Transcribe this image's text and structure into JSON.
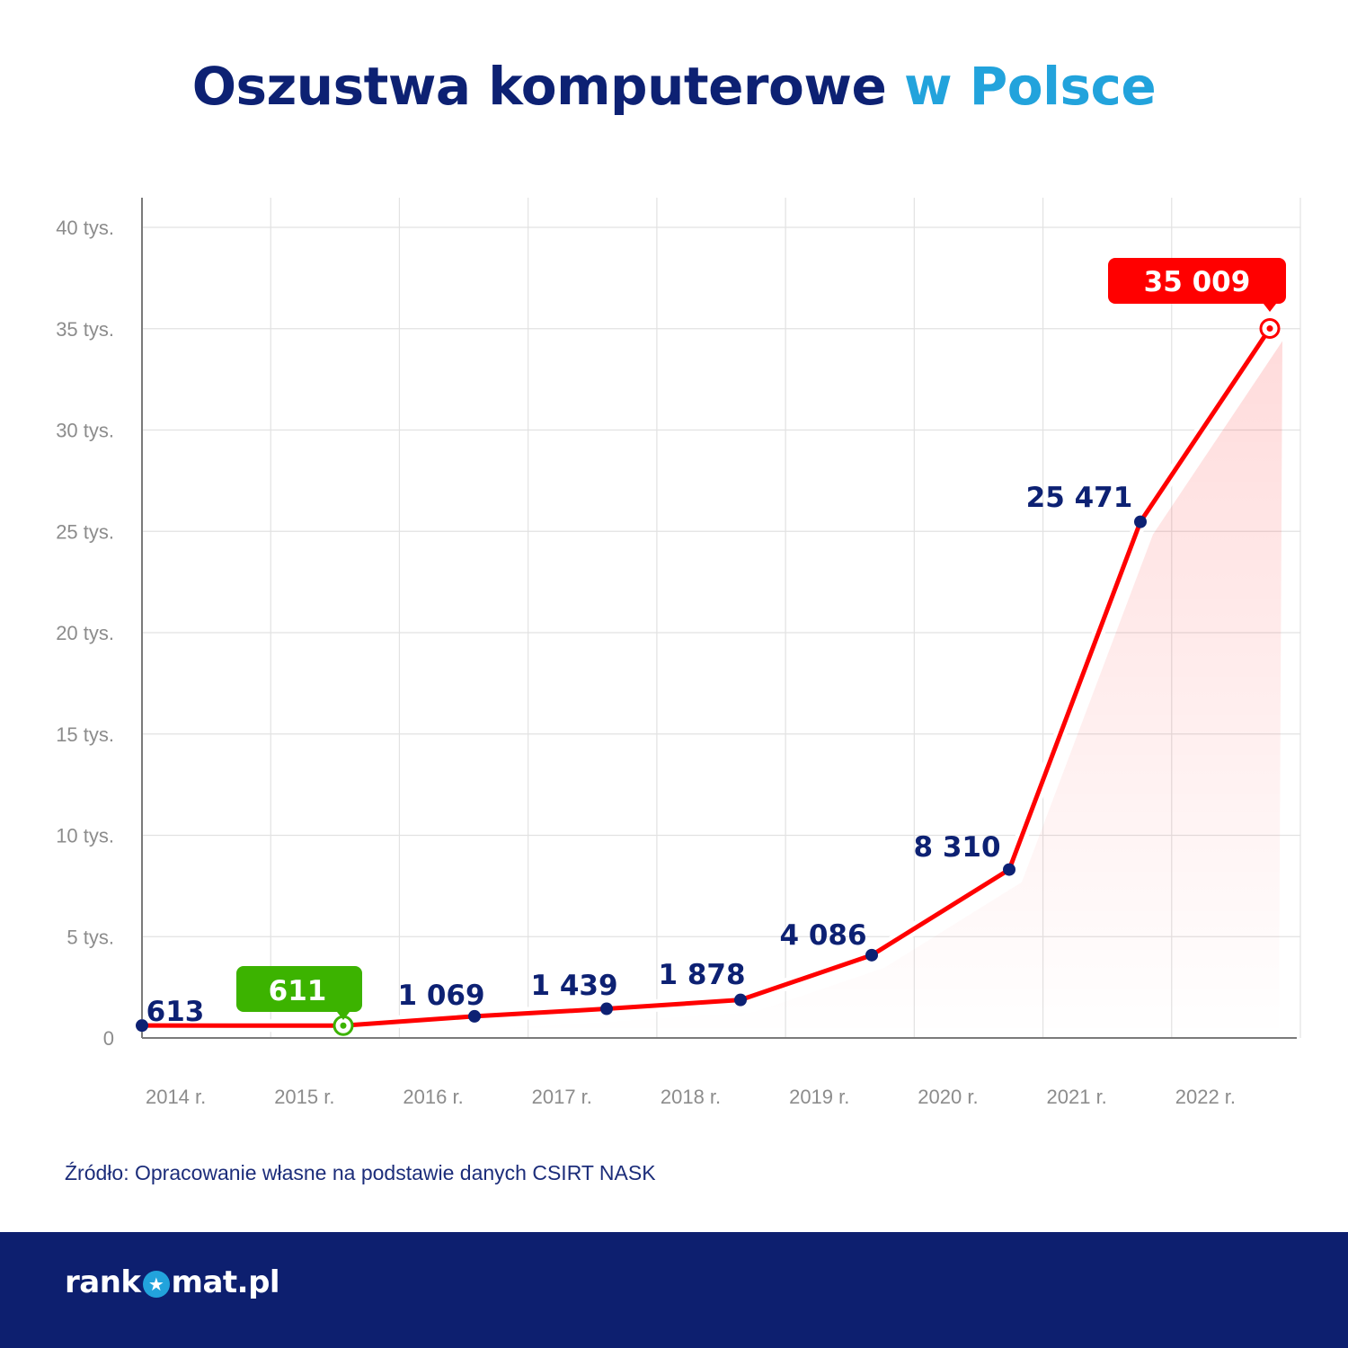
{
  "title": {
    "main": "Oszustwa komputerowe",
    "accent": "w Polsce"
  },
  "colors": {
    "navy": "#0d2173",
    "accent_blue": "#22a3dc",
    "line_red": "#ff0000",
    "highlight_green": "#3cb300",
    "grid": "#e2e2e2",
    "axis_text": "#8c8c8c",
    "footer_bg": "#0d1f6f"
  },
  "chart_data": {
    "type": "line",
    "title": "Oszustwa komputerowe w Polsce",
    "xlabel": "",
    "ylabel": "",
    "categories": [
      "2014 r.",
      "2015 r.",
      "2016 r.",
      "2017 r.",
      "2018 r.",
      "2019 r.",
      "2020 r.",
      "2021 r.",
      "2022 r."
    ],
    "values": [
      613,
      611,
      1069,
      1439,
      1878,
      4086,
      8310,
      25471,
      35009
    ],
    "data_labels": [
      "613",
      "611",
      "1 069",
      "1 439",
      "1 878",
      "4 086",
      "8 310",
      "25 471",
      "35 009"
    ],
    "ylim": [
      0,
      41000
    ],
    "yticks": [
      0,
      5000,
      10000,
      15000,
      20000,
      25000,
      30000,
      35000,
      40000
    ],
    "ytick_labels": [
      "0",
      "5 tys.",
      "10 tys.",
      "15 tys.",
      "20 tys.",
      "25 tys.",
      "30 tys.",
      "35 tys.",
      "40 tys."
    ],
    "highlight_min": {
      "category": "2015 r.",
      "value": 611,
      "color": "#3cb300"
    },
    "highlight_max": {
      "category": "2022 r.",
      "value": 35009,
      "color": "#ff0000"
    },
    "grid": true,
    "legend": "none",
    "area_fill": true
  },
  "source": "Źródło: Opracowanie własne na podstawie danych CSIRT NASK",
  "footer": {
    "logo_left": "rank",
    "logo_icon": "star-icon",
    "logo_right": "mat.pl"
  }
}
